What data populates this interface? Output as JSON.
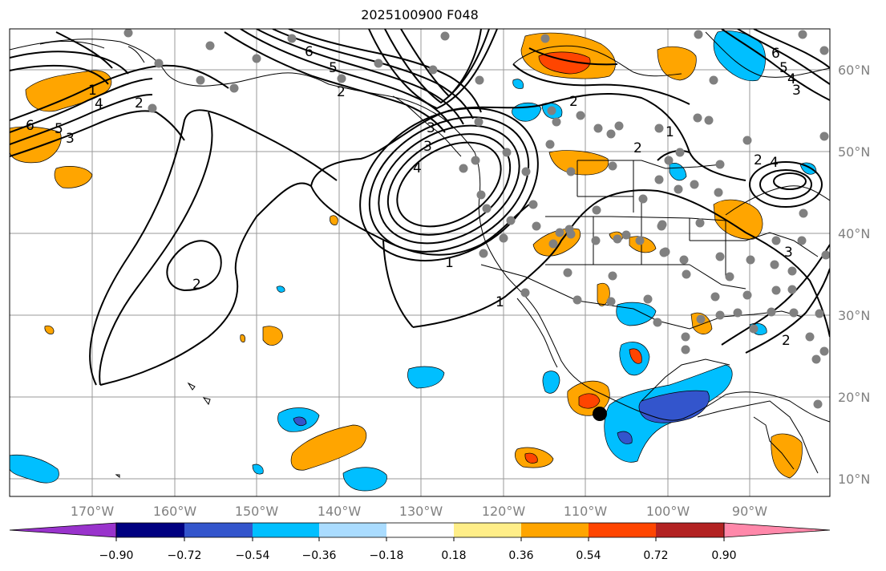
{
  "title": "2025100900 F048",
  "lon_labels": [
    "170°W",
    "160°W",
    "150°W",
    "140°W",
    "130°W",
    "120°W",
    "110°W",
    "100°W",
    "90°W"
  ],
  "lat_labels": [
    "60°N",
    "50°N",
    "40°N",
    "30°N",
    "20°N",
    "10°N"
  ],
  "colorbar": {
    "ticks": [
      "−0.90",
      "−0.72",
      "−0.54",
      "−0.36",
      "−0.18",
      "0.18",
      "0.36",
      "0.54",
      "0.72",
      "0.90"
    ],
    "colors": [
      "#9933cc",
      "#000080",
      "#3355cc",
      "#00bfff",
      "#aadcff",
      "#ffffff",
      "#ffee88",
      "#ffa500",
      "#ff4500",
      "#b22222",
      "#ff88aa"
    ]
  },
  "fill_colors": {
    "orange": "#ffa500",
    "red": "#ff4500",
    "blue": "#00bfff",
    "royal": "#3355cc"
  },
  "contour_labels": [
    "6",
    "5",
    "4",
    "3",
    "2",
    "1",
    "6",
    "5",
    "4",
    "3",
    "2",
    "1",
    "2",
    "2",
    "2",
    "2",
    "1",
    "1",
    "3",
    "4",
    "2",
    "3",
    "6",
    "5",
    "4",
    "3"
  ]
}
